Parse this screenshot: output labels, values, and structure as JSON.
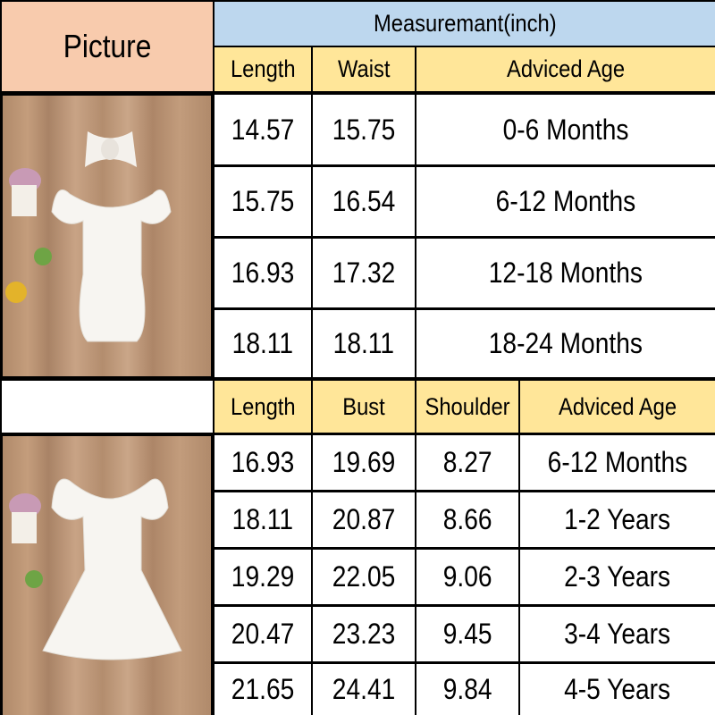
{
  "picture_header": "Picture",
  "measurement_header": "Measuremant(inch)",
  "romper_table": {
    "columns": [
      "Length",
      "Waist",
      "Adviced Age"
    ],
    "rows": [
      [
        "14.57",
        "15.75",
        "0-6 Months"
      ],
      [
        "15.75",
        "16.54",
        "6-12 Months"
      ],
      [
        "16.93",
        "17.32",
        "12-18 Months"
      ],
      [
        "18.11",
        "18.11",
        "18-24 Months"
      ]
    ]
  },
  "dress_table": {
    "columns": [
      "Length",
      "Bust",
      "Shoulder",
      "Adviced Age"
    ],
    "rows": [
      [
        "16.93",
        "19.69",
        "8.27",
        "6-12 Months"
      ],
      [
        "18.11",
        "20.87",
        "8.66",
        "1-2 Years"
      ],
      [
        "19.29",
        "22.05",
        "9.06",
        "2-3 Years"
      ],
      [
        "20.47",
        "23.23",
        "9.45",
        "3-4 Years"
      ],
      [
        "21.65",
        "24.41",
        "9.84",
        "4-5 Years"
      ]
    ]
  },
  "colors": {
    "picture_header": "#F8CBAD",
    "measurement_header": "#BDD7EE",
    "column_header": "#FFE699"
  }
}
